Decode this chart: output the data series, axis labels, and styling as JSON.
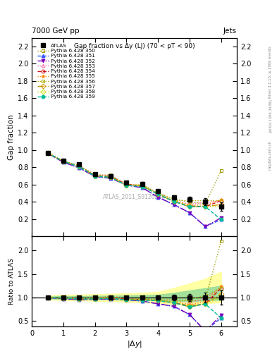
{
  "title_top": "7000 GeV pp",
  "title_right": "Jets",
  "plot_title": "Gap fraction vs Δy (LJ) (70 < pT < 90)",
  "watermark": "ATLAS_2011_S9126244",
  "ylabel_main": "Gap fraction",
  "ylabel_ratio": "Ratio to ATLAS",
  "right_label1": "Rivet 3.1.10, ≥ 100k events",
  "right_label2": "[arXiv:1306.3436]",
  "right_label3": "mcplots.cern.ch",
  "xlim": [
    0,
    6.5
  ],
  "ylim_main": [
    0,
    2.3
  ],
  "ylim_ratio": [
    0.38,
    2.3
  ],
  "yticks_main": [
    0.2,
    0.4,
    0.6,
    0.8,
    1.0,
    1.2,
    1.4,
    1.6,
    1.8,
    2.0,
    2.2
  ],
  "yticks_ratio": [
    0.5,
    1.0,
    1.5,
    2.0
  ],
  "xticks": [
    0,
    1,
    2,
    3,
    4,
    5,
    6
  ],
  "atlas_x": [
    0.5,
    1.0,
    1.5,
    2.0,
    2.5,
    3.0,
    3.5,
    4.0,
    4.5,
    5.0,
    5.5,
    6.0
  ],
  "atlas_y": [
    0.965,
    0.88,
    0.835,
    0.72,
    0.695,
    0.625,
    0.61,
    0.525,
    0.455,
    0.43,
    0.4,
    0.345
  ],
  "atlas_yerr": [
    0.012,
    0.012,
    0.012,
    0.015,
    0.015,
    0.015,
    0.018,
    0.02,
    0.025,
    0.03,
    0.04,
    0.05
  ],
  "series": [
    {
      "label": "Pythia 6.428 350",
      "color": "#999900",
      "marker": "s",
      "fillstyle": "none",
      "linestyle": "dotted",
      "linewidth": 1.0,
      "y": [
        0.97,
        0.875,
        0.82,
        0.715,
        0.71,
        0.595,
        0.6,
        0.5,
        0.435,
        0.4,
        0.38,
        0.76
      ]
    },
    {
      "label": "Pythia 6.428 351",
      "color": "#3355ff",
      "marker": "^",
      "fillstyle": "full",
      "linestyle": "dashed",
      "linewidth": 1.0,
      "y": [
        0.963,
        0.86,
        0.795,
        0.695,
        0.675,
        0.595,
        0.565,
        0.455,
        0.37,
        0.275,
        0.115,
        0.195
      ]
    },
    {
      "label": "Pythia 6.428 352",
      "color": "#7700bb",
      "marker": "v",
      "fillstyle": "full",
      "linestyle": "dashdot",
      "linewidth": 1.0,
      "y": [
        0.963,
        0.86,
        0.795,
        0.695,
        0.675,
        0.595,
        0.565,
        0.455,
        0.37,
        0.275,
        0.115,
        0.215
      ]
    },
    {
      "label": "Pythia 6.428 353",
      "color": "#ff66aa",
      "marker": "^",
      "fillstyle": "none",
      "linestyle": "dotted",
      "linewidth": 1.0,
      "y": [
        0.967,
        0.87,
        0.815,
        0.715,
        0.695,
        0.605,
        0.585,
        0.49,
        0.415,
        0.375,
        0.395,
        0.415
      ]
    },
    {
      "label": "Pythia 6.428 354",
      "color": "#cc1111",
      "marker": "o",
      "fillstyle": "none",
      "linestyle": "dashed",
      "linewidth": 1.0,
      "y": [
        0.967,
        0.87,
        0.815,
        0.705,
        0.695,
        0.605,
        0.585,
        0.49,
        0.405,
        0.355,
        0.345,
        0.415
      ]
    },
    {
      "label": "Pythia 6.428 355",
      "color": "#ff8800",
      "marker": "*",
      "fillstyle": "full",
      "linestyle": "dotted",
      "linewidth": 1.0,
      "y": [
        0.967,
        0.87,
        0.815,
        0.705,
        0.695,
        0.605,
        0.585,
        0.49,
        0.415,
        0.365,
        0.365,
        0.43
      ]
    },
    {
      "label": "Pythia 6.428 356",
      "color": "#aaaa00",
      "marker": "s",
      "fillstyle": "none",
      "linestyle": "dotted",
      "linewidth": 1.0,
      "y": [
        0.97,
        0.875,
        0.815,
        0.71,
        0.685,
        0.595,
        0.595,
        0.495,
        0.415,
        0.415,
        0.415,
        0.415
      ]
    },
    {
      "label": "Pythia 6.428 357",
      "color": "#cc9900",
      "marker": "D",
      "fillstyle": "none",
      "linestyle": "dashdot",
      "linewidth": 1.0,
      "y": [
        0.967,
        0.87,
        0.81,
        0.705,
        0.685,
        0.595,
        0.585,
        0.49,
        0.405,
        0.345,
        0.345,
        0.37
      ]
    },
    {
      "label": "Pythia 6.428 358",
      "color": "#ccdd00",
      "marker": "D",
      "fillstyle": "none",
      "linestyle": "dotted",
      "linewidth": 1.0,
      "y": [
        0.967,
        0.87,
        0.81,
        0.7,
        0.685,
        0.595,
        0.585,
        0.49,
        0.415,
        0.355,
        0.345,
        0.345
      ]
    },
    {
      "label": "Pythia 6.428 359",
      "color": "#00bb99",
      "marker": "o",
      "fillstyle": "full",
      "linestyle": "dashed",
      "linewidth": 1.0,
      "y": [
        0.967,
        0.87,
        0.81,
        0.7,
        0.685,
        0.595,
        0.575,
        0.49,
        0.405,
        0.345,
        0.345,
        0.195
      ]
    }
  ],
  "band_yellow_ratio": {
    "x": [
      0.5,
      1.0,
      1.5,
      2.0,
      2.5,
      3.0,
      3.5,
      4.0,
      4.5,
      5.0,
      5.5,
      6.0
    ],
    "y_low": [
      0.96,
      0.94,
      0.94,
      0.93,
      0.92,
      0.91,
      0.9,
      0.88,
      0.86,
      0.84,
      0.88,
      0.9
    ],
    "y_high": [
      1.04,
      1.06,
      1.06,
      1.07,
      1.08,
      1.09,
      1.1,
      1.12,
      1.2,
      1.3,
      1.4,
      1.55
    ]
  },
  "band_green_ratio": {
    "x": [
      0.5,
      1.0,
      1.5,
      2.0,
      2.5,
      3.0,
      3.5,
      4.0,
      4.5,
      5.0,
      5.5,
      6.0
    ],
    "y_low": [
      0.98,
      0.97,
      0.97,
      0.965,
      0.96,
      0.955,
      0.95,
      0.94,
      0.93,
      0.92,
      0.94,
      0.95
    ],
    "y_high": [
      1.02,
      1.03,
      1.03,
      1.035,
      1.04,
      1.045,
      1.05,
      1.06,
      1.1,
      1.15,
      1.2,
      1.25
    ]
  }
}
